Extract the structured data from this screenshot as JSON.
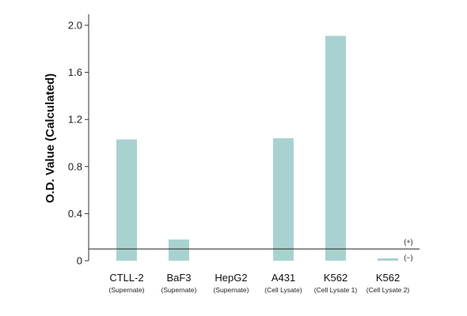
{
  "chart_data": {
    "type": "bar",
    "title": "",
    "xlabel": "",
    "ylabel": "O.D. Value (Calculated)",
    "ylim": [
      0,
      2.0
    ],
    "yticks": [
      "0",
      "0.4",
      "0.8",
      "1.2",
      "1.6",
      "2.0"
    ],
    "grid": false,
    "bar_color": "#a8d2cf",
    "categories": [
      {
        "name": "CTLL-2",
        "sub": "(Supernate)"
      },
      {
        "name": "BaF3",
        "sub": "(Supernate)"
      },
      {
        "name": "HepG2",
        "sub": "(Supernate)"
      },
      {
        "name": "A431",
        "sub": "(Cell Lysate)"
      },
      {
        "name": "K562",
        "sub": "(Cell Lysate 1)"
      },
      {
        "name": "K562",
        "sub": "(Cell Lysate 2)"
      }
    ],
    "values": [
      1.03,
      0.18,
      0.0,
      1.04,
      1.91,
      0.02
    ],
    "reference_line": {
      "value": 0.1,
      "label_above": "(+)",
      "label_below": "(−)"
    }
  }
}
